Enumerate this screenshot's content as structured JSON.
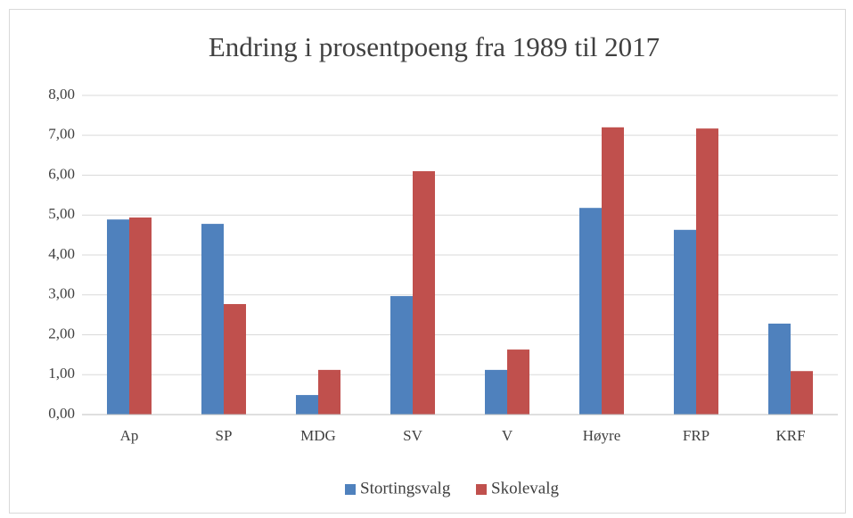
{
  "chart_data": {
    "type": "bar",
    "title": "Endring i prosentpoeng fra 1989 til 2017",
    "categories": [
      "Ap",
      "SP",
      "MDG",
      "SV",
      "V",
      "Høyre",
      "FRP",
      "KRF"
    ],
    "series": [
      {
        "name": "Stortingsvalg",
        "color": "#4f81bd",
        "values": [
          4.89,
          4.78,
          0.49,
          2.97,
          1.12,
          5.18,
          4.63,
          2.28
        ]
      },
      {
        "name": "Skolevalg",
        "color": "#c0504d",
        "values": [
          4.94,
          2.77,
          1.12,
          6.1,
          1.63,
          7.2,
          7.17,
          1.09
        ]
      }
    ],
    "ylim": [
      0,
      8
    ],
    "yticks": [
      {
        "value": 0,
        "label": "0,00"
      },
      {
        "value": 1,
        "label": "1,00"
      },
      {
        "value": 2,
        "label": "2,00"
      },
      {
        "value": 3,
        "label": "3,00"
      },
      {
        "value": 4,
        "label": "4,00"
      },
      {
        "value": 5,
        "label": "5,00"
      },
      {
        "value": 6,
        "label": "6,00"
      },
      {
        "value": 7,
        "label": "7,00"
      },
      {
        "value": 8,
        "label": "8,00"
      }
    ],
    "grid": true,
    "legend": "bottom"
  }
}
